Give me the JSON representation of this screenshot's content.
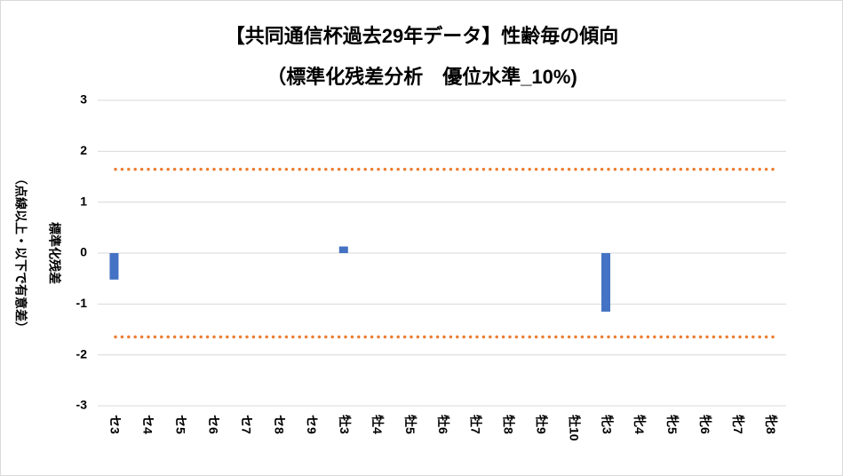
{
  "chart_data": {
    "type": "bar",
    "title": "【共同通信杯過去29年データ】性齢毎の傾向",
    "subtitle": "（標準化残差分析　優位水準_10%)",
    "y_label": [
      "標準化残差",
      "（点線以上・以下で有意差）"
    ],
    "categories": [
      "セ3",
      "セ4",
      "セ5",
      "セ6",
      "セ7",
      "セ8",
      "セ9",
      "牡3",
      "牡4",
      "牡5",
      "牡6",
      "牡7",
      "牡8",
      "牡9",
      "牡10",
      "牝3",
      "牝4",
      "牝5",
      "牝6",
      "牝7",
      "牝8"
    ],
    "values": [
      -0.52,
      0,
      0,
      0,
      0,
      0,
      0,
      0.13,
      0,
      0,
      0,
      0,
      0,
      0,
      0,
      -1.15,
      0,
      0,
      0,
      0,
      0
    ],
    "color": "#4472c4",
    "ylim": [
      -3,
      3
    ],
    "yticks": [
      -3,
      -2,
      -1,
      0,
      1,
      2,
      3
    ],
    "grid": true,
    "ref_lines": [
      1.645,
      -1.645
    ],
    "ref_color": "#ed7d31"
  }
}
